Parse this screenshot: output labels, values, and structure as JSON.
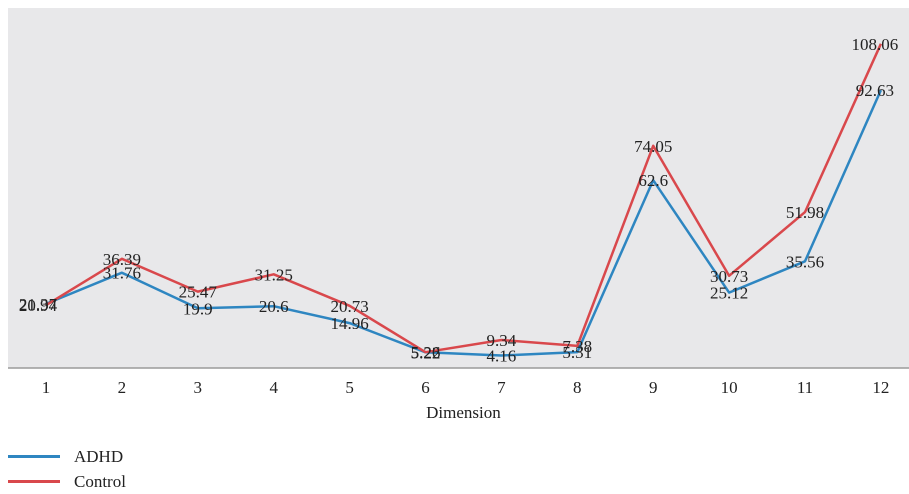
{
  "chart_data": {
    "type": "line",
    "title": "",
    "xlabel": "Dimension",
    "ylabel": "",
    "ylim": [
      0,
      120
    ],
    "grid": false,
    "legend": "bottom-left",
    "categories": [
      "1",
      "2",
      "3",
      "4",
      "5",
      "6",
      "7",
      "8",
      "9",
      "10",
      "11",
      "12"
    ],
    "series": [
      {
        "name": "ADHD",
        "color": "#2e86c1",
        "values": [
          21.37,
          31.76,
          19.9,
          20.6,
          14.96,
          5.22,
          4.16,
          5.31,
          62.6,
          25.12,
          35.56,
          92.63
        ]
      },
      {
        "name": "Control",
        "color": "#d9484c",
        "values": [
          20.94,
          36.39,
          25.47,
          31.25,
          20.73,
          5.26,
          9.34,
          7.38,
          74.05,
          30.73,
          51.98,
          108.06
        ]
      }
    ],
    "plot_background": "#e8e8ea"
  }
}
